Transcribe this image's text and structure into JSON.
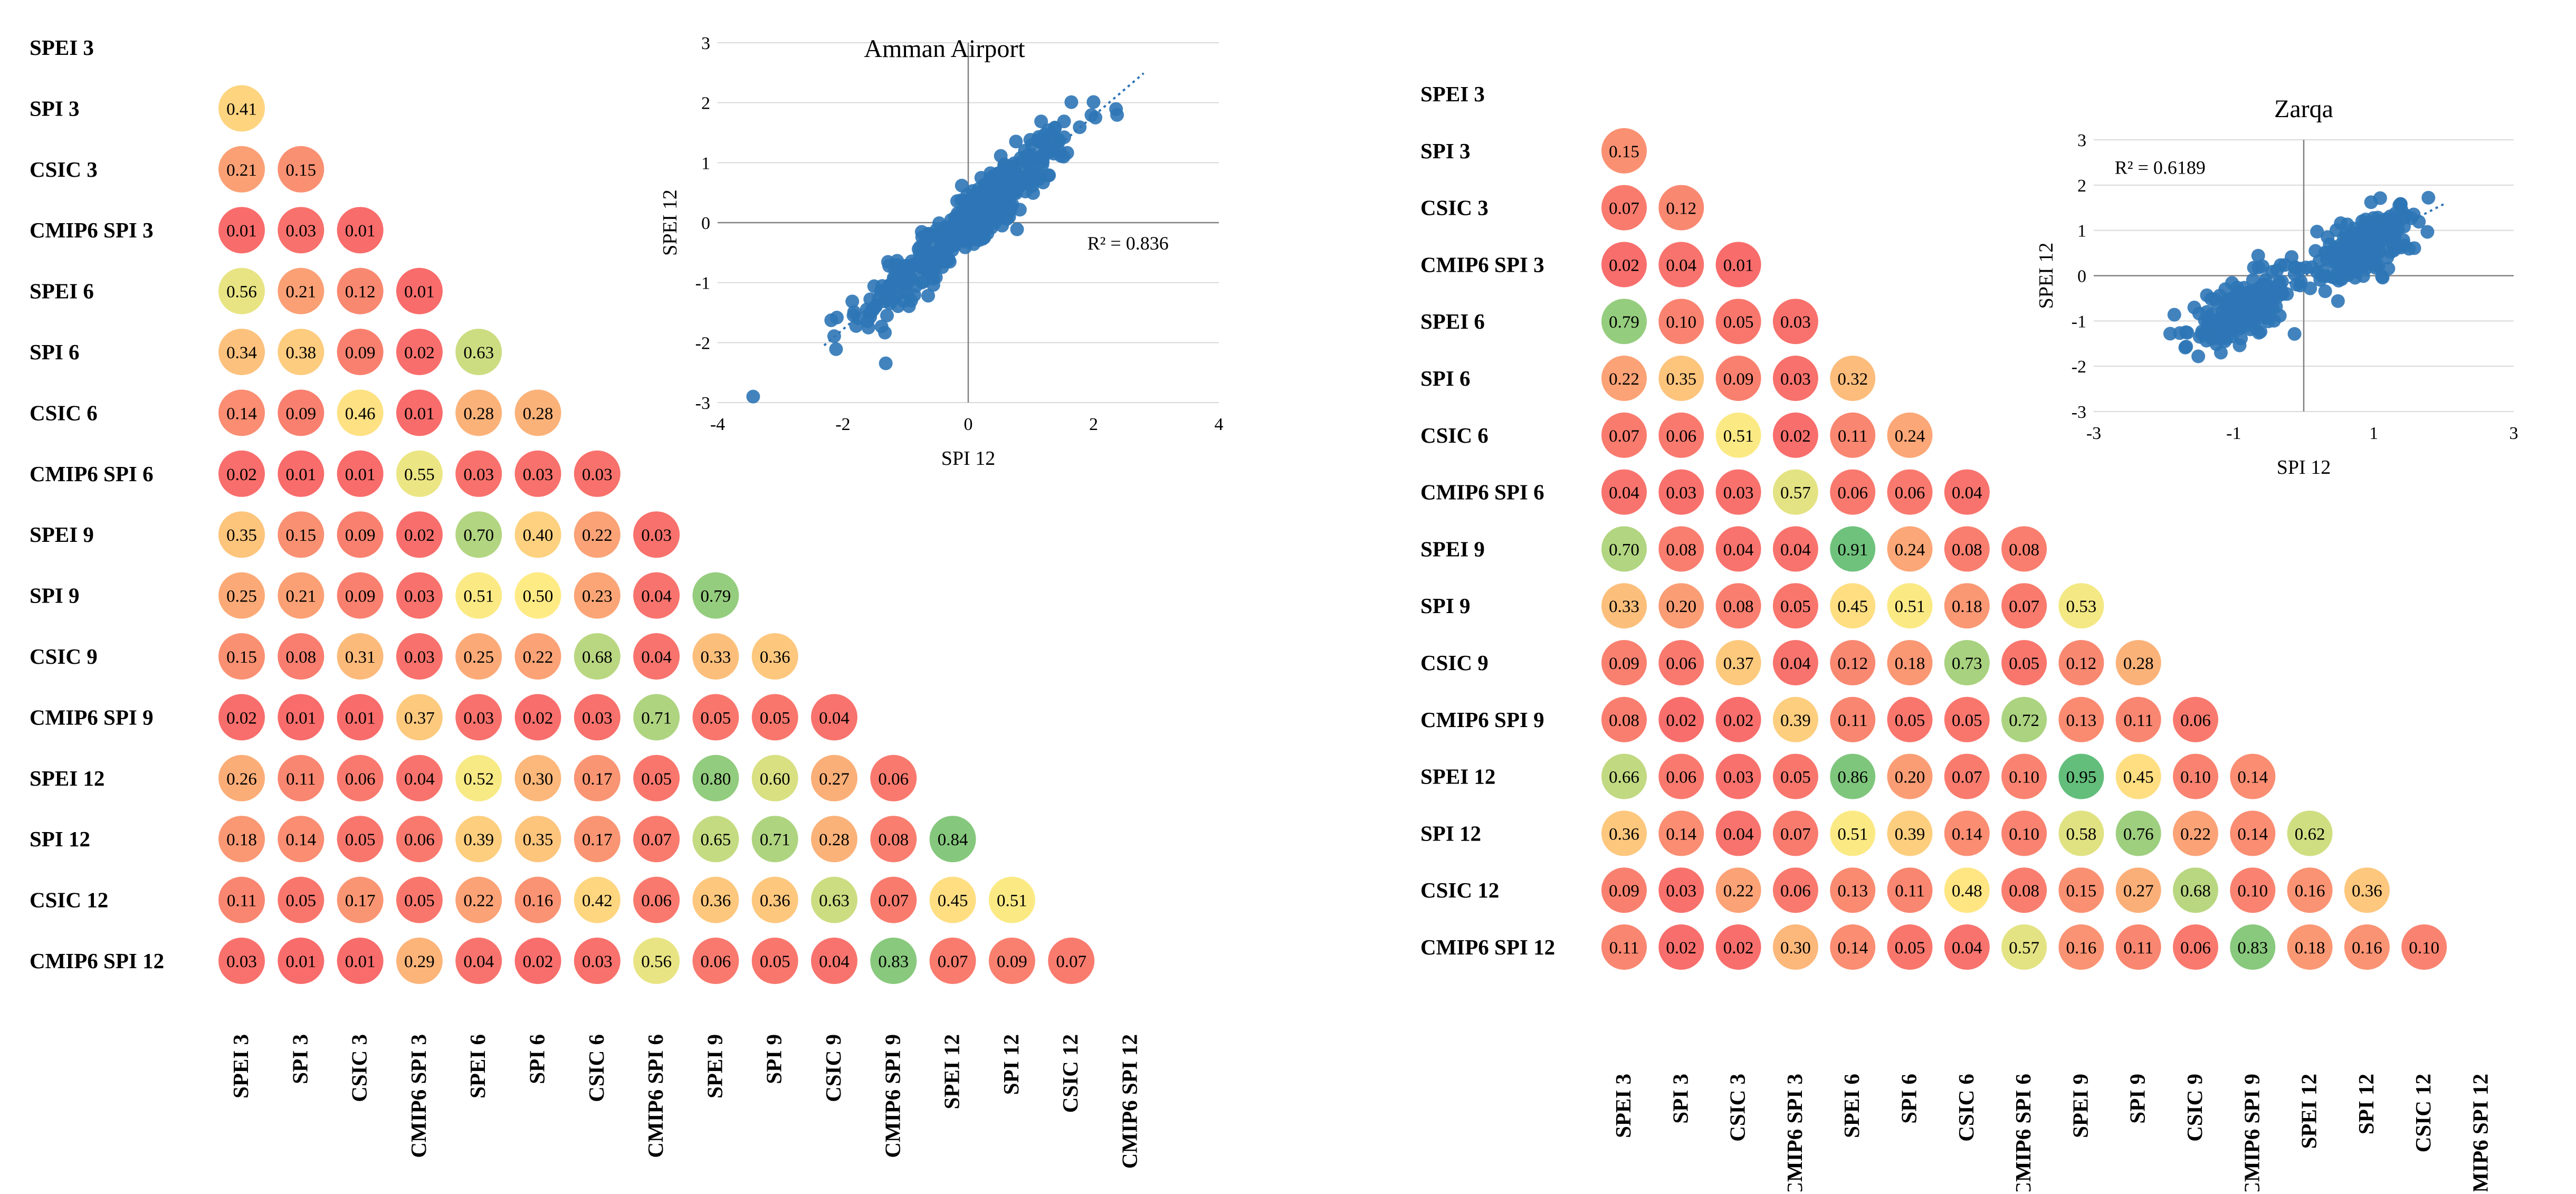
{
  "colors": {
    "scale": [
      "#f8696b",
      "#fbaa77",
      "#ffeb84",
      "#b1d580",
      "#63be7b"
    ],
    "scatter_point": "#2e75b6",
    "axis": "#808080",
    "grid": "#d9d9d9"
  },
  "chart_data": [
    {
      "type": "heatmap",
      "title": "",
      "labels": [
        "SPEI 3",
        "SPI 3",
        "CSIC 3",
        "CMIP6 SPI 3",
        "SPEI 6",
        "SPI 6",
        "CSIC 6",
        "CMIP6 SPI 6",
        "SPEI 9",
        "SPI 9",
        "CSIC 9",
        "CMIP6 SPI 9",
        "SPEI 12",
        "SPI 12",
        "CSIC 12",
        "CMIP6 SPI 12"
      ],
      "matrix": [
        [],
        [
          0.41
        ],
        [
          0.21,
          0.15
        ],
        [
          0.01,
          0.03,
          0.01
        ],
        [
          0.56,
          0.21,
          0.12,
          0.01
        ],
        [
          0.34,
          0.38,
          0.09,
          0.02,
          0.63
        ],
        [
          0.14,
          0.09,
          0.46,
          0.01,
          0.28,
          0.28
        ],
        [
          0.02,
          0.01,
          0.01,
          0.55,
          0.03,
          0.03,
          0.03
        ],
        [
          0.35,
          0.15,
          0.09,
          0.02,
          0.7,
          0.4,
          0.22,
          0.03
        ],
        [
          0.25,
          0.21,
          0.09,
          0.03,
          0.51,
          0.5,
          0.23,
          0.04,
          0.79
        ],
        [
          0.15,
          0.08,
          0.31,
          0.03,
          0.25,
          0.22,
          0.68,
          0.04,
          0.33,
          0.36
        ],
        [
          0.02,
          0.01,
          0.01,
          0.37,
          0.03,
          0.02,
          0.03,
          0.71,
          0.05,
          0.05,
          0.04
        ],
        [
          0.26,
          0.11,
          0.06,
          0.04,
          0.52,
          0.3,
          0.17,
          0.05,
          0.8,
          0.6,
          0.27,
          0.06
        ],
        [
          0.18,
          0.14,
          0.05,
          0.06,
          0.39,
          0.35,
          0.17,
          0.07,
          0.65,
          0.71,
          0.28,
          0.08,
          0.84
        ],
        [
          0.11,
          0.05,
          0.17,
          0.05,
          0.22,
          0.16,
          0.42,
          0.06,
          0.36,
          0.36,
          0.63,
          0.07,
          0.45,
          0.51
        ],
        [
          0.03,
          0.01,
          0.01,
          0.29,
          0.04,
          0.02,
          0.03,
          0.56,
          0.06,
          0.05,
          0.04,
          0.83,
          0.07,
          0.09,
          0.07
        ]
      ],
      "display": [
        [],
        [
          "0.41"
        ],
        [
          "0.21",
          "0.15"
        ],
        [
          "0.01",
          "0.03",
          "0.01"
        ],
        [
          "0.56",
          "0.21",
          "0.12",
          "0.01"
        ],
        [
          "0.34",
          "0.38",
          "0.09",
          "0.02",
          "0.63"
        ],
        [
          "0.14",
          "0.09",
          "0.46",
          "0.01",
          "0.28",
          "0.28"
        ],
        [
          "0.02",
          "0.01",
          "0.01",
          "0.55",
          "0.03",
          "0.03",
          "0.03"
        ],
        [
          "0.35",
          "0.15",
          "0.09",
          "0.02",
          "0.70",
          "0.40",
          "0.22",
          "0.03"
        ],
        [
          "0.25",
          "0.21",
          "0.09",
          "0.03",
          "0.51",
          "0.50",
          "0.23",
          "0.04",
          "0.79"
        ],
        [
          "0.15",
          "0.08",
          "0.31",
          "0.03",
          "0.25",
          "0.22",
          "0.68",
          "0.04",
          "0.33",
          "0.36"
        ],
        [
          "0.02",
          "0.01",
          "0.01",
          "0.37",
          "0.03",
          "0.02",
          "0.03",
          "0.71",
          "0.05",
          "0.05",
          "0.04"
        ],
        [
          "0.26",
          "0.11",
          "0.06",
          "0.04",
          "0.52",
          "0.30",
          "0.17",
          "0.05",
          "0.80",
          "0.60",
          "0.27",
          "0.06"
        ],
        [
          "0.18",
          "0.14",
          "0.05",
          "0.06",
          "0.39",
          "0.35",
          "0.17",
          "0.07",
          "0.65",
          "0.71",
          "0.28",
          "0.08",
          "0.84"
        ],
        [
          "0.11",
          "0.05",
          "0.17",
          "0.05",
          "0.22",
          "0.16",
          "0.42",
          "0.06",
          "0.36",
          "0.36",
          "0.63",
          "0.07",
          "0.45",
          "0.51"
        ],
        [
          "0.03",
          "0.01",
          "0.01",
          "0.29",
          "0.04",
          "0.02",
          "0.03",
          "0.56",
          "0.06",
          "0.05",
          "0.04",
          "0.83",
          "0.07",
          "0.09",
          "0.07"
        ]
      ],
      "inset": {
        "type": "scatter",
        "title": "Amman Airport",
        "xlabel": "SPI 12",
        "ylabel": "SPEI 12",
        "xlim": [
          -4,
          4
        ],
        "ylim": [
          -3,
          3
        ],
        "xticks": [
          "-4",
          "-2",
          "0",
          "2",
          "4"
        ],
        "yticks": [
          "3",
          "2",
          "1",
          "0",
          "-1",
          "-2",
          "-3"
        ],
        "r2_label": "R² = 0.836",
        "trend_slope": 0.89,
        "spread": 0.28,
        "sample_size": 420
      }
    },
    {
      "type": "heatmap",
      "title": "",
      "labels": [
        "SPEI 3",
        "SPI 3",
        "CSIC 3",
        "CMIP6 SPI 3",
        "SPEI 6",
        "SPI 6",
        "CSIC 6",
        "CMIP6 SPI 6",
        "SPEI 9",
        "SPI 9",
        "CSIC 9",
        "CMIP6 SPI 9",
        "SPEI 12",
        "SPI 12",
        "CSIC 12",
        "CMIP6 SPI 12"
      ],
      "matrix": [
        [],
        [
          0.15
        ],
        [
          0.07,
          0.12
        ],
        [
          0.02,
          0.04,
          0.01
        ],
        [
          0.79,
          0.1,
          0.05,
          0.03
        ],
        [
          0.22,
          0.35,
          0.09,
          0.03,
          0.32
        ],
        [
          0.07,
          0.06,
          0.51,
          0.02,
          0.11,
          0.24
        ],
        [
          0.04,
          0.03,
          0.03,
          0.57,
          0.06,
          0.06,
          0.04
        ],
        [
          0.7,
          0.08,
          0.04,
          0.04,
          0.91,
          0.24,
          0.08,
          0.08
        ],
        [
          0.33,
          0.2,
          0.08,
          0.05,
          0.45,
          0.51,
          0.18,
          0.07,
          0.53
        ],
        [
          0.09,
          0.06,
          0.37,
          0.04,
          0.12,
          0.18,
          0.73,
          0.05,
          0.12,
          0.28
        ],
        [
          0.08,
          0.02,
          0.02,
          0.39,
          0.11,
          0.05,
          0.05,
          0.72,
          0.13,
          0.11,
          0.06
        ],
        [
          0.66,
          0.06,
          0.03,
          0.05,
          0.86,
          0.2,
          0.07,
          0.1,
          0.95,
          0.45,
          0.1,
          0.14
        ],
        [
          0.36,
          0.14,
          0.04,
          0.07,
          0.51,
          0.39,
          0.14,
          0.1,
          0.58,
          0.76,
          0.22,
          0.14,
          0.62
        ],
        [
          0.09,
          0.03,
          0.22,
          0.06,
          0.13,
          0.11,
          0.48,
          0.08,
          0.15,
          0.27,
          0.68,
          0.1,
          0.16,
          0.36
        ],
        [
          0.11,
          0.02,
          0.02,
          0.3,
          0.14,
          0.05,
          0.04,
          0.57,
          0.16,
          0.11,
          0.06,
          0.83,
          0.18,
          0.16,
          0.1
        ]
      ],
      "display": [
        [],
        [
          "0.15"
        ],
        [
          "0.07",
          "0.12"
        ],
        [
          "0.02",
          "0.04",
          "0.01"
        ],
        [
          "0.79",
          "0.10",
          "0.05",
          "0.03"
        ],
        [
          "0.22",
          "0.35",
          "0.09",
          "0.03",
          "0.32"
        ],
        [
          "0.07",
          "0.06",
          "0.51",
          "0.02",
          "0.11",
          "0.24"
        ],
        [
          "0.04",
          "0.03",
          "0.03",
          "0.57",
          "0.06",
          "0.06",
          "0.04"
        ],
        [
          "0.70",
          "0.08",
          "0.04",
          "0.04",
          "0.91",
          "0.24",
          "0.08",
          "0.08"
        ],
        [
          "0.33",
          "0.20",
          "0.08",
          "0.05",
          "0.45",
          "0.51",
          "0.18",
          "0.07",
          "0.53"
        ],
        [
          "0.09",
          "0.06",
          "0.37",
          "0.04",
          "0.12",
          "0.18",
          "0.73",
          "0.05",
          "0.12",
          "0.28"
        ],
        [
          "0.08",
          "0.02",
          "0.02",
          "0.39",
          "0.11",
          "0.05",
          "0.05",
          "0.72",
          "0.13",
          "0.11",
          "0.06"
        ],
        [
          "0.66",
          "0.06",
          "0.03",
          "0.05",
          "0.86",
          "0.20",
          "0.07",
          "0.10",
          "0.95",
          "0.45",
          "0.10",
          "0.14"
        ],
        [
          "0.36",
          "0.14",
          "0.04",
          "0.07",
          "0.51",
          "0.39",
          "0.14",
          "0.10",
          "0.58",
          "0.76",
          "0.22",
          "0.14",
          "0.62"
        ],
        [
          "0.09",
          "0.03",
          "0.22",
          "0.06",
          "0.13",
          "0.11",
          "0.48",
          "0.08",
          "0.15",
          "0.27",
          "0.68",
          "0.10",
          "0.16",
          "0.36"
        ],
        [
          "0.11",
          "0.02",
          "0.02",
          "0.30",
          "0.14",
          "0.05",
          "0.04",
          "0.57",
          "0.16",
          "0.11",
          "0.06",
          "0.83",
          "0.18",
          "0.16",
          "0.10"
        ]
      ],
      "inset": {
        "type": "scatter",
        "title": "Zarqa",
        "xlabel": "SPI 12",
        "ylabel": "SPEI 12",
        "xlim": [
          -3,
          3
        ],
        "ylim": [
          -3,
          3
        ],
        "xticks": [
          "-3",
          "-1",
          "1",
          "3"
        ],
        "yticks": [
          "3",
          "2",
          "1",
          "0",
          "-1",
          "-2",
          "-3"
        ],
        "r2_label": "R² = 0.6189",
        "trend_slope": 0.79,
        "spread": 0.35,
        "sample_size": 420
      }
    }
  ]
}
